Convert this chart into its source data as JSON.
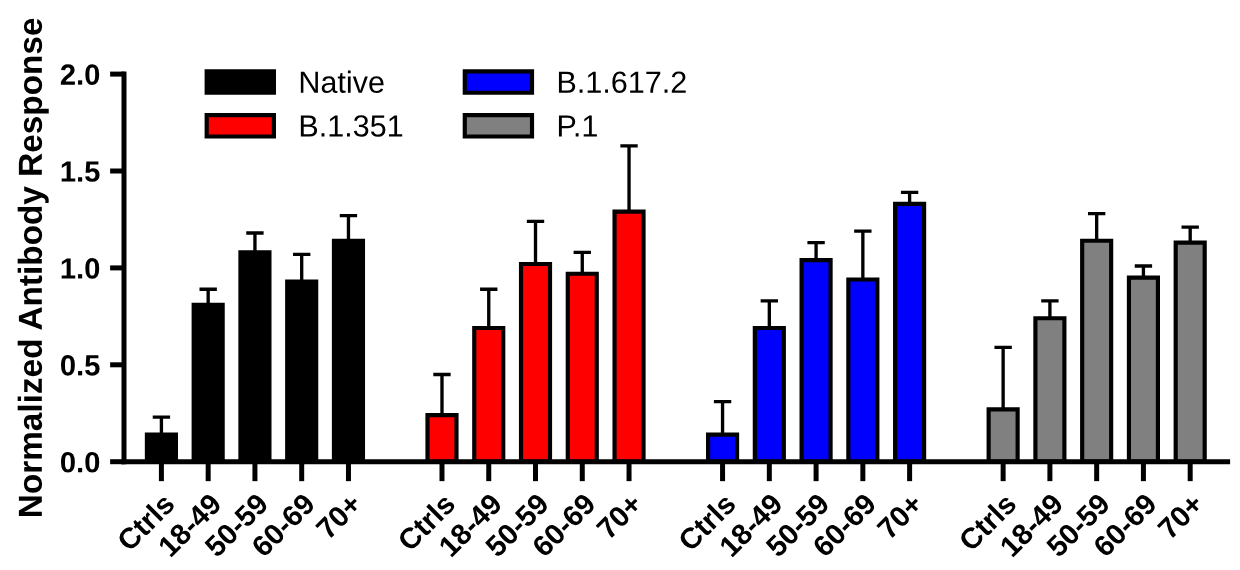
{
  "chart_data": {
    "type": "bar",
    "ylabel": "Normalized Antibody Response",
    "categories": [
      "Ctrls",
      "18-49",
      "50-59",
      "60-69",
      "70+",
      null,
      "Ctrls",
      "18-49",
      "50-59",
      "60-69",
      "70+",
      null,
      "Ctrls",
      "18-49",
      "50-59",
      "60-69",
      "70+",
      null,
      "Ctrls",
      "18-49",
      "50-59",
      "60-69",
      "70+"
    ],
    "series": [
      {
        "name": "Native",
        "color": "#000000",
        "values": [
          0.14,
          0.81,
          1.08,
          0.93,
          1.14,
          null,
          null,
          null,
          null,
          null,
          null,
          null,
          null,
          null,
          null,
          null,
          null,
          null,
          null,
          null,
          null,
          null,
          null
        ],
        "errors": [
          [
            0.14,
            0.23
          ],
          [
            0.81,
            0.89
          ],
          [
            1.08,
            1.18
          ],
          [
            0.93,
            1.07
          ],
          [
            1.14,
            1.27
          ],
          null,
          null,
          null,
          null,
          null,
          null,
          null,
          null,
          null,
          null,
          null,
          null,
          null,
          null,
          null,
          null,
          null,
          null
        ]
      },
      {
        "name": "B.1.351",
        "color": "#ff0000",
        "values": [
          null,
          null,
          null,
          null,
          null,
          null,
          0.24,
          0.69,
          1.02,
          0.97,
          1.29,
          null,
          null,
          null,
          null,
          null,
          null,
          null,
          null,
          null,
          null,
          null,
          null
        ],
        "errors": [
          null,
          null,
          null,
          null,
          null,
          null,
          [
            0.24,
            0.45
          ],
          [
            0.69,
            0.89
          ],
          [
            1.02,
            1.24
          ],
          [
            0.97,
            1.08
          ],
          [
            1.29,
            1.63
          ],
          null,
          null,
          null,
          null,
          null,
          null,
          null,
          null,
          null,
          null,
          null,
          null
        ]
      },
      {
        "name": "B.1.617.2",
        "color": "#0000ff",
        "values": [
          null,
          null,
          null,
          null,
          null,
          null,
          null,
          null,
          null,
          null,
          null,
          null,
          0.14,
          0.69,
          1.04,
          0.94,
          1.33,
          null,
          null,
          null,
          null,
          null,
          null
        ],
        "errors": [
          null,
          null,
          null,
          null,
          null,
          null,
          null,
          null,
          null,
          null,
          null,
          null,
          [
            0.14,
            0.31
          ],
          [
            0.69,
            0.83
          ],
          [
            1.04,
            1.13
          ],
          [
            0.94,
            1.19
          ],
          [
            1.33,
            1.39
          ],
          null,
          null,
          null,
          null,
          null,
          null
        ]
      },
      {
        "name": "P.1",
        "color": "#808080",
        "values": [
          null,
          null,
          null,
          null,
          null,
          null,
          null,
          null,
          null,
          null,
          null,
          null,
          null,
          null,
          null,
          null,
          null,
          null,
          0.27,
          0.74,
          1.14,
          0.95,
          1.13
        ],
        "errors": [
          null,
          null,
          null,
          null,
          null,
          null,
          null,
          null,
          null,
          null,
          null,
          null,
          null,
          null,
          null,
          null,
          null,
          null,
          [
            0.27,
            0.59
          ],
          [
            0.74,
            0.83
          ],
          [
            1.14,
            1.28
          ],
          [
            0.95,
            1.01
          ],
          [
            1.13,
            1.21
          ]
        ]
      }
    ],
    "ylim": [
      0,
      2.0
    ],
    "yticks": [
      {
        "value": 0,
        "label": "0.0"
      },
      {
        "value": 0.5,
        "label": "0.5"
      },
      {
        "value": 1.0,
        "label": "1.0"
      },
      {
        "value": 1.5,
        "label": "1.5"
      },
      {
        "value": 2.0,
        "label": "2.0"
      }
    ],
    "legend": "top left",
    "grid": false
  }
}
